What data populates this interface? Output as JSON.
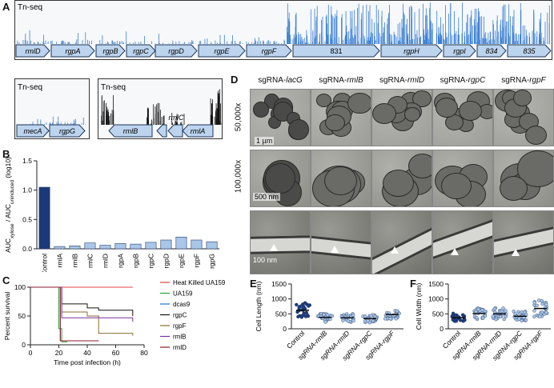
{
  "panel_labels": {
    "A": "A",
    "B": "B",
    "C": "C",
    "D": "D",
    "E": "E",
    "F": "F"
  },
  "tnseq": {
    "label": "Tn-seq",
    "main_genes": [
      "rmlD",
      "rgpA",
      "rgpB",
      "rgpC",
      "rgpD",
      "rgpE",
      "rgpF",
      "831",
      "rgpH",
      "rgpI",
      "834",
      "835"
    ],
    "inset1_genes": [
      "mecA",
      "rgpG"
    ],
    "inset2_genes": [
      "rmlB",
      "rmlC",
      "rmlA"
    ]
  },
  "colors": {
    "tnseq_bar": "#3a7fd5",
    "gene_fill": "#bcd4ee",
    "gene_stroke": "#1d3557",
    "auc_bar": "#a9c7e8",
    "control_bar": "#1b3a7a"
  },
  "em": {
    "columns": [
      "sgRNA-lacG",
      "sgRNA-rmlB",
      "sgRNA-rmlD",
      "sgRNA-rgpC",
      "sgRNA-rgpF"
    ],
    "col_prefix": "sgRNA-",
    "col_genes": [
      "lacG",
      "rmlB",
      "rmlD",
      "rgpC",
      "rgpF"
    ],
    "rows": [
      "50,000x",
      "100,000x"
    ],
    "scalebars": [
      "1 µm",
      "500 nm",
      "100 nm"
    ]
  },
  "chart_data": [
    {
      "type": "bar",
      "panel": "B",
      "ylabel_main": "AUC",
      "ylabel_sub1": "xylose",
      "ylabel_mid": " / AUC",
      "ylabel_sub2": "uninduced",
      "ylabel_tail": " (log10)",
      "categories": [
        "Control",
        "rmlA",
        "rmlB",
        "rmlC",
        "rmlD",
        "rgpA",
        "rgpB",
        "rgpC",
        "rgpD",
        "rgpE",
        "rgpF",
        "rgpG"
      ],
      "values": [
        1.05,
        0.04,
        0.05,
        0.1,
        0.06,
        0.09,
        0.08,
        0.11,
        0.15,
        0.2,
        0.15,
        0.12
      ],
      "ylim": [
        0,
        1.5
      ],
      "yticks": [
        "0.0",
        "0.5",
        "1.0",
        "1.5"
      ]
    },
    {
      "type": "line",
      "panel": "C",
      "xlabel": "Time post infection (h)",
      "ylabel": "Percent survival",
      "xlim": [
        0,
        80
      ],
      "ylim": [
        0,
        100
      ],
      "xticks": [
        "0",
        "20",
        "40",
        "60",
        "80"
      ],
      "yticks": [
        "0",
        "50",
        "100"
      ],
      "series": [
        {
          "name": "Heat Killed UA159",
          "color": "#e04040",
          "points": [
            [
              0,
              100
            ],
            [
              72,
              100
            ]
          ]
        },
        {
          "name": "UA159",
          "color": "#2ca02c",
          "points": [
            [
              0,
              100
            ],
            [
              20,
              100
            ],
            [
              20,
              28
            ],
            [
              22,
              28
            ],
            [
              22,
              5
            ],
            [
              26,
              5
            ]
          ]
        },
        {
          "name": "dcas9",
          "color": "#1f6fd0",
          "points": [
            [
              0,
              100
            ],
            [
              21,
              100
            ],
            [
              21,
              7
            ],
            [
              27,
              7
            ]
          ]
        },
        {
          "name": "rgpC",
          "color": "#111111",
          "points": [
            [
              0,
              100
            ],
            [
              22,
              100
            ],
            [
              22,
              71
            ],
            [
              40,
              71
            ],
            [
              40,
              64
            ],
            [
              48,
              64
            ],
            [
              48,
              60
            ],
            [
              72,
              60
            ],
            [
              72,
              50
            ]
          ]
        },
        {
          "name": "rgpF",
          "color": "#8a6d2f",
          "points": [
            [
              0,
              100
            ],
            [
              22,
              100
            ],
            [
              22,
              57
            ],
            [
              40,
              57
            ],
            [
              40,
              50
            ],
            [
              48,
              50
            ],
            [
              48,
              20
            ],
            [
              72,
              20
            ],
            [
              72,
              16
            ]
          ]
        },
        {
          "name": "rmlB",
          "color": "#7a2fa0",
          "points": [
            [
              0,
              100
            ],
            [
              22,
              100
            ],
            [
              22,
              47
            ],
            [
              72,
              47
            ],
            [
              72,
              40
            ]
          ]
        },
        {
          "name": "rmlD",
          "color": "#8b1a2a",
          "points": [
            [
              0,
              100
            ],
            [
              21,
              100
            ],
            [
              21,
              7
            ],
            [
              48,
              7
            ]
          ]
        }
      ]
    },
    {
      "type": "scatter",
      "panel": "E",
      "ylabel": "Cell Length (nm)",
      "categories": [
        "Control",
        "sgRNA-rmlB",
        "sgRNA-rmlD",
        "sgRNA-rgpC",
        "sgRNA-rgpF"
      ],
      "ylim": [
        0,
        1500
      ],
      "yticks": [
        "0",
        "500",
        "1000",
        "1500"
      ],
      "medians": [
        620,
        380,
        370,
        340,
        480
      ]
    },
    {
      "type": "scatter",
      "panel": "F",
      "ylabel": "Cell Width (nm)",
      "categories": [
        "Control",
        "sgRNA-rmlB",
        "sgRNA-rmlD",
        "sgRNA-rgpC",
        "sgRNA-rgpF"
      ],
      "ylim": [
        0,
        1500
      ],
      "yticks": [
        "0",
        "500",
        "1000",
        "1500"
      ],
      "medians": [
        370,
        510,
        500,
        420,
        680
      ]
    }
  ]
}
